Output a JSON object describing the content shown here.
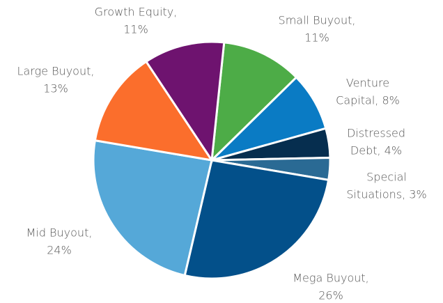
{
  "chart_data": {
    "type": "pie",
    "labels": [
      [
        "Small Buyout,",
        "11%"
      ],
      [
        "Venture",
        "Capital, 8%"
      ],
      [
        "Distressed",
        "Debt, 4%"
      ],
      [
        "Special",
        "Situations, 3%"
      ],
      [
        "Mega Buyout,",
        "26%"
      ],
      [
        "Mid Buyout,",
        "24%"
      ],
      [
        "Large Buyout,",
        "13%"
      ],
      [
        "Growth Equity,",
        "11%"
      ]
    ],
    "values": [
      11,
      8,
      4,
      3,
      26,
      24,
      13,
      11
    ],
    "colors": [
      "#4dac47",
      "#0a7bc4",
      "#062e4f",
      "#2a6a94",
      "#03508a",
      "#55a8d8",
      "#fb6e2c",
      "#6e136f"
    ]
  }
}
